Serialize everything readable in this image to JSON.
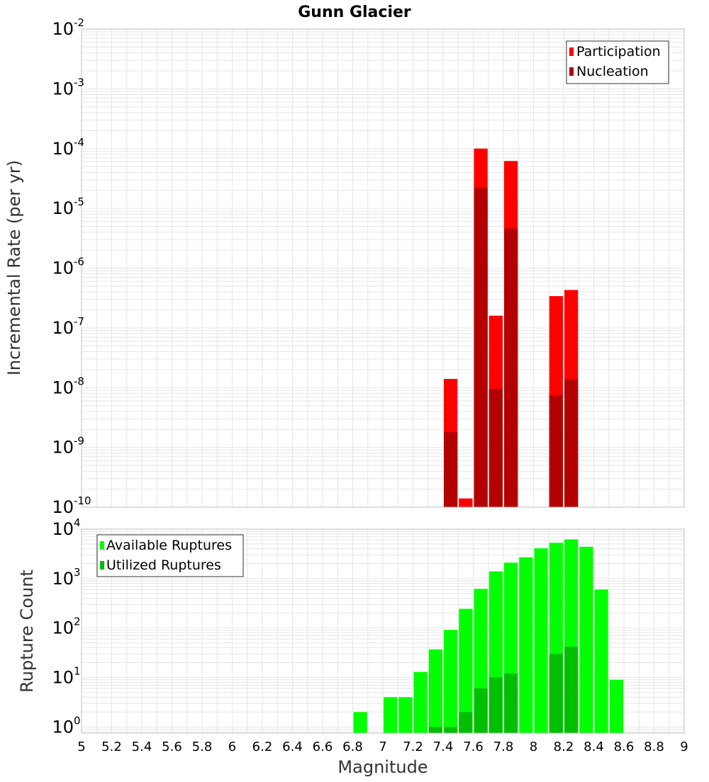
{
  "title": "Gunn Glacier",
  "xlabel": "Magnitude",
  "x_ticks": [
    "5",
    "5.2",
    "5.4",
    "5.6",
    "5.8",
    "6",
    "6.2",
    "6.4",
    "6.6",
    "6.8",
    "7",
    "7.2",
    "7.4",
    "7.6",
    "7.8",
    "8",
    "8.2",
    "8.4",
    "8.6",
    "8.8",
    "9"
  ],
  "top_ylabel": "Incremental Rate (per yr)",
  "top_y_exponents": [
    "-10",
    "-9",
    "-8",
    "-7",
    "-6",
    "-5",
    "-4",
    "-3",
    "-2"
  ],
  "bottom_ylabel": "Rupture Count",
  "bottom_y_exponents": [
    "0",
    "1",
    "2",
    "3",
    "4"
  ],
  "tick_base": "10",
  "colors": {
    "participation": "#ff0000",
    "nucleation": "#b30000",
    "available": "#00ff00",
    "utilized": "#00bf00",
    "grid": "#e6e6e6",
    "frame": "#bfbfbf"
  },
  "chart_data": [
    {
      "type": "bar",
      "title": "Gunn Glacier",
      "xlabel": "Magnitude",
      "ylabel": "Incremental Rate (per yr)",
      "yscale": "log",
      "xlim": [
        5,
        9
      ],
      "ylim": [
        1e-10,
        0.01
      ],
      "bin_width": 0.1,
      "legend": [
        "Participation",
        "Nucleation"
      ],
      "legend_position": "top-right",
      "x": [
        7.45,
        7.55,
        7.65,
        7.75,
        7.85,
        8.15,
        8.25
      ],
      "series": [
        {
          "name": "Participation",
          "values": [
            1.4e-08,
            1.4e-10,
            0.0001,
            1.6e-07,
            6.2e-05,
            3.4e-07,
            4.3e-07
          ]
        },
        {
          "name": "Nucleation",
          "values": [
            1.8e-09,
            0,
            2.2e-05,
            9.5e-09,
            4.6e-06,
            7.5e-09,
            1.4e-08
          ]
        }
      ]
    },
    {
      "type": "bar",
      "title": "",
      "xlabel": "Magnitude",
      "ylabel": "Rupture Count",
      "yscale": "log",
      "xlim": [
        5,
        9
      ],
      "ylim": [
        0.75,
        10000
      ],
      "bin_width": 0.1,
      "legend": [
        "Available Ruptures",
        "Utilized Ruptures"
      ],
      "legend_position": "top-left",
      "x": [
        6.85,
        7.05,
        7.15,
        7.25,
        7.35,
        7.45,
        7.55,
        7.65,
        7.75,
        7.85,
        7.95,
        8.05,
        8.15,
        8.25,
        8.35,
        8.45,
        8.55
      ],
      "series": [
        {
          "name": "Available Ruptures",
          "values": [
            2,
            4,
            4,
            13,
            37,
            92,
            245,
            620,
            1400,
            2100,
            2700,
            4100,
            5300,
            6200,
            4400,
            600,
            9
          ]
        },
        {
          "name": "Utilized Ruptures",
          "values": [
            0,
            0,
            0,
            0,
            1,
            1,
            2,
            6,
            10,
            12,
            0,
            0,
            30,
            42,
            0,
            0,
            0
          ]
        }
      ]
    }
  ]
}
